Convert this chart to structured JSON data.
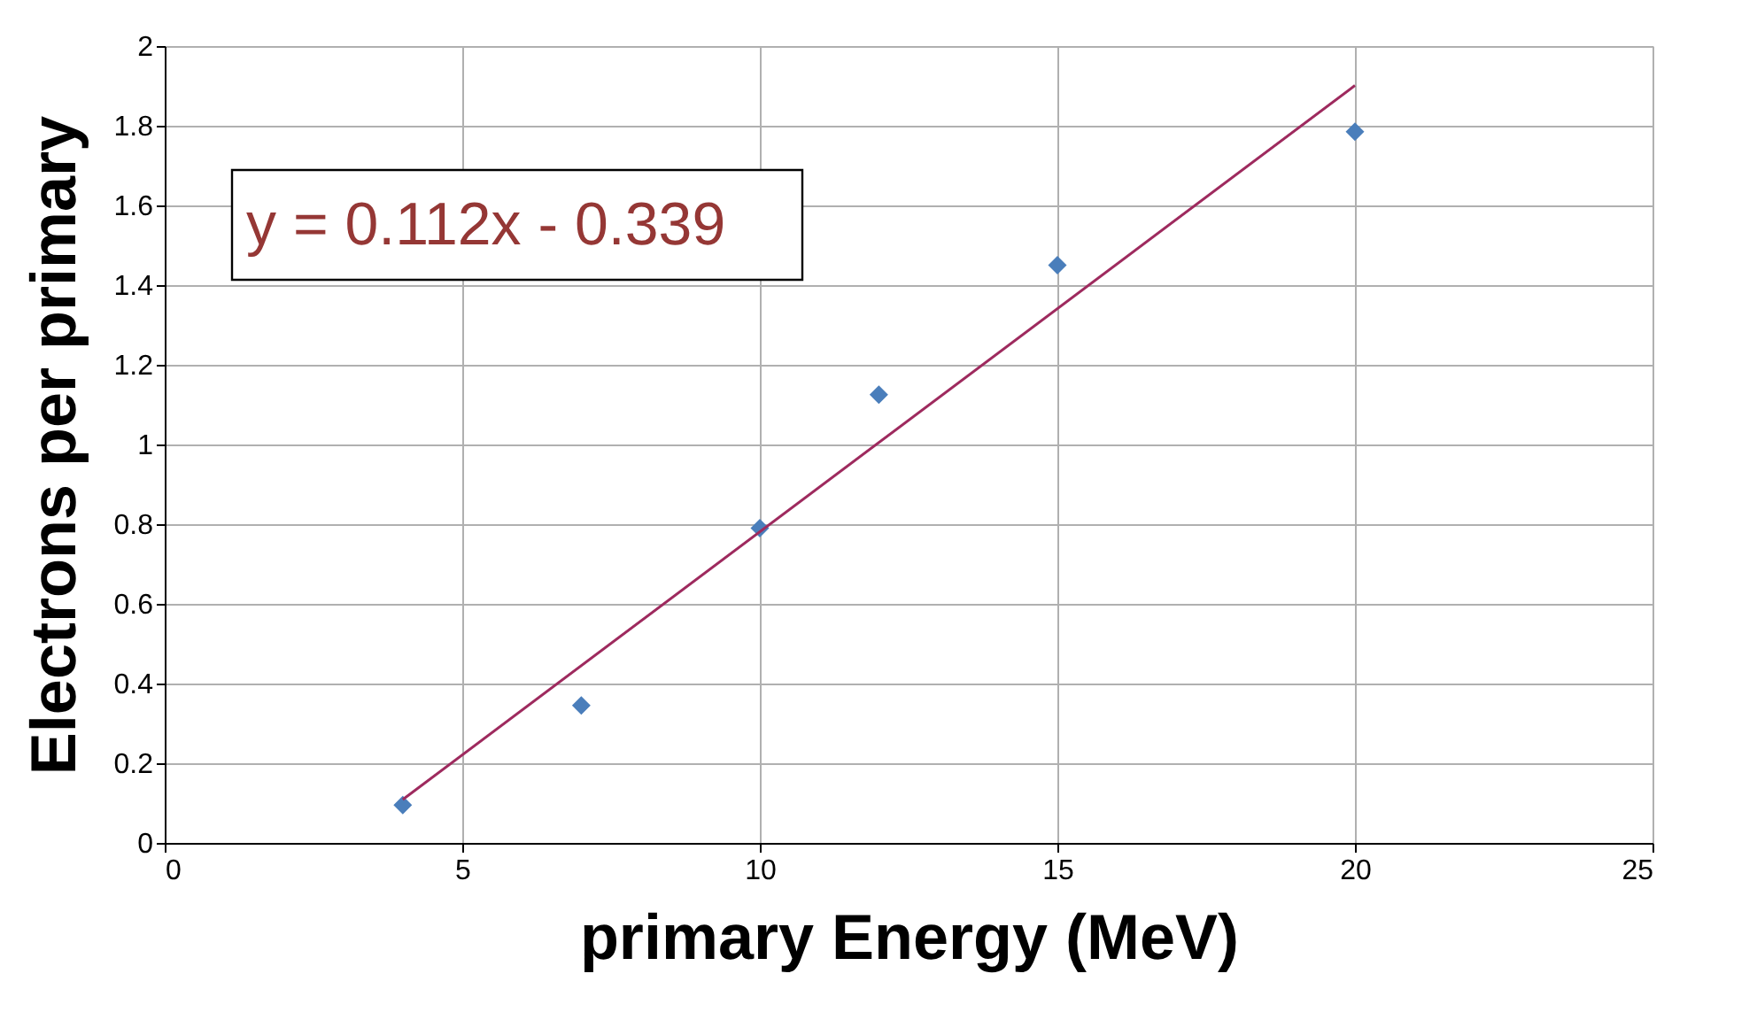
{
  "chart_data": {
    "type": "scatter",
    "xlabel": "primary Energy (MeV)",
    "ylabel": "Electrons per primary",
    "x": [
      4,
      7,
      10,
      12,
      15,
      20
    ],
    "series": [
      {
        "color": "#4a7ebb",
        "marker": "diamond",
        "values": [
          0.095,
          0.345,
          0.79,
          1.125,
          1.45,
          1.785
        ]
      },
      {
        "type": "line",
        "color": "#9e2a5e",
        "line_style": "solid",
        "marker": "none",
        "x": [
          4,
          20
        ],
        "values": [
          0.109,
          1.901
        ]
      }
    ],
    "annotations": [
      "y = 0.112x - 0.339"
    ],
    "xlim": [
      0,
      25
    ],
    "xticks": [
      0,
      5,
      10,
      15,
      20,
      25
    ],
    "ylim": [
      0,
      2
    ],
    "yticks": [
      0,
      0.2,
      0.4,
      0.6,
      0.8,
      1,
      1.2,
      1.4,
      1.6,
      1.8,
      2
    ],
    "grid": true
  }
}
